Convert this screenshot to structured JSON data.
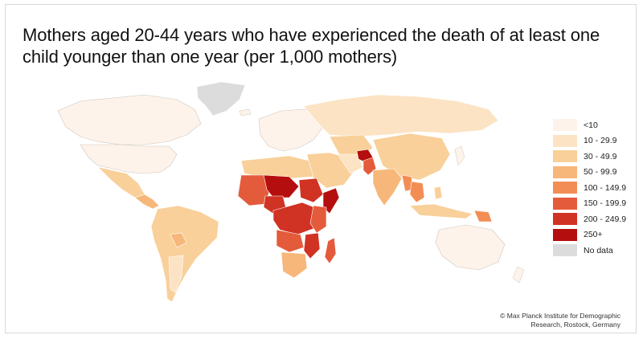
{
  "title": "Mothers aged 20-44 years who have experienced the death of at least one child younger than one year (per 1,000 mothers)",
  "legend": {
    "items": [
      {
        "label": "<10",
        "color": "#fdf3ea"
      },
      {
        "label": "10 - 29.9",
        "color": "#fce3c4"
      },
      {
        "label": "30 - 49.9",
        "color": "#f9d09a"
      },
      {
        "label": "50 - 99.9",
        "color": "#f7b77a"
      },
      {
        "label": "100 - 149.9",
        "color": "#f28e55"
      },
      {
        "label": "150 - 199.9",
        "color": "#e45b3c"
      },
      {
        "label": "200 - 249.9",
        "color": "#d03224"
      },
      {
        "label": "250+",
        "color": "#b50e0e"
      },
      {
        "label": "No data",
        "color": "#dcdcdc"
      }
    ]
  },
  "credit": {
    "line1": "© Max Planck Institute for Demographic",
    "line2": "Research, Rostock, Germany"
  }
}
